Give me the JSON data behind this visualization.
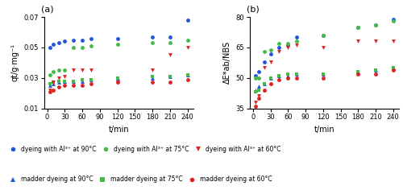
{
  "t": [
    5,
    10,
    20,
    30,
    45,
    60,
    75,
    120,
    180,
    210,
    240
  ],
  "panel_a": {
    "al3_90": [
      0.05,
      0.052,
      0.053,
      0.054,
      0.055,
      0.055,
      0.056,
      0.056,
      0.057,
      0.057,
      0.068
    ],
    "madder_90": [
      0.025,
      0.026,
      0.027,
      0.028,
      0.028,
      0.028,
      0.029,
      0.03,
      0.03,
      0.031,
      0.032
    ],
    "al3_75": [
      0.032,
      0.034,
      0.035,
      0.035,
      0.05,
      0.05,
      0.051,
      0.052,
      0.053,
      0.053,
      0.055
    ],
    "madder_75": [
      0.026,
      0.027,
      0.028,
      0.028,
      0.028,
      0.029,
      0.029,
      0.03,
      0.031,
      0.031,
      0.032
    ],
    "al3_60": [
      0.022,
      0.027,
      0.03,
      0.031,
      0.035,
      0.035,
      0.035,
      0.027,
      0.035,
      0.045,
      0.05
    ],
    "madder_60": [
      0.021,
      0.022,
      0.024,
      0.025,
      0.025,
      0.025,
      0.026,
      0.027,
      0.027,
      0.027,
      0.029
    ],
    "ylabel": "qt/g·mg⁻¹",
    "ylim": [
      0.01,
      0.07
    ],
    "yticks": [
      0.01,
      0.03,
      0.05,
      0.07
    ]
  },
  "panel_b": {
    "al3_90": [
      51,
      53,
      58,
      62,
      65,
      66,
      70,
      71,
      75,
      76,
      79
    ],
    "madder_90": [
      44,
      46,
      47,
      50,
      51,
      51,
      52,
      52,
      53,
      54,
      55
    ],
    "al3_75": [
      50,
      50,
      63,
      64,
      67,
      67,
      68,
      71,
      75,
      76,
      78
    ],
    "madder_75": [
      43,
      44,
      47,
      50,
      51,
      52,
      52,
      52,
      53,
      54,
      55
    ],
    "al3_60": [
      38,
      41,
      55,
      58,
      63,
      65,
      66,
      65,
      68,
      68,
      68
    ],
    "madder_60": [
      36,
      40,
      44,
      47,
      49,
      50,
      50,
      50,
      52,
      52,
      54
    ],
    "ylabel": "ΔE*ab/NBS",
    "ylim": [
      35,
      80
    ],
    "yticks": [
      35,
      50,
      65,
      80
    ]
  },
  "xlim": [
    -5,
    250
  ],
  "xticks": [
    0,
    30,
    60,
    90,
    120,
    150,
    180,
    210,
    240
  ],
  "xlabel": "t/min",
  "colors": {
    "blue": "#2255dd",
    "green": "#44bb44",
    "red": "#dd2222"
  },
  "legend_row1": [
    {
      "label": "dyeing with Al³⁺ at 90°C",
      "color": "#2255dd",
      "marker": "o"
    },
    {
      "label": "dyeing with Al³⁺ at 75°C",
      "color": "#44bb44",
      "marker": "o"
    },
    {
      "label": "dyeing with Al³⁺ at 60°C",
      "color": "#dd2222",
      "marker": "v"
    }
  ],
  "legend_row2": [
    {
      "label": "madder dyeing at 90°C",
      "color": "#2255dd",
      "marker": "^"
    },
    {
      "label": "madder dyeing at 75°C",
      "color": "#44bb44",
      "marker": "s"
    },
    {
      "label": "madder dyeing at 60°C",
      "color": "#dd2222",
      "marker": "o"
    }
  ]
}
